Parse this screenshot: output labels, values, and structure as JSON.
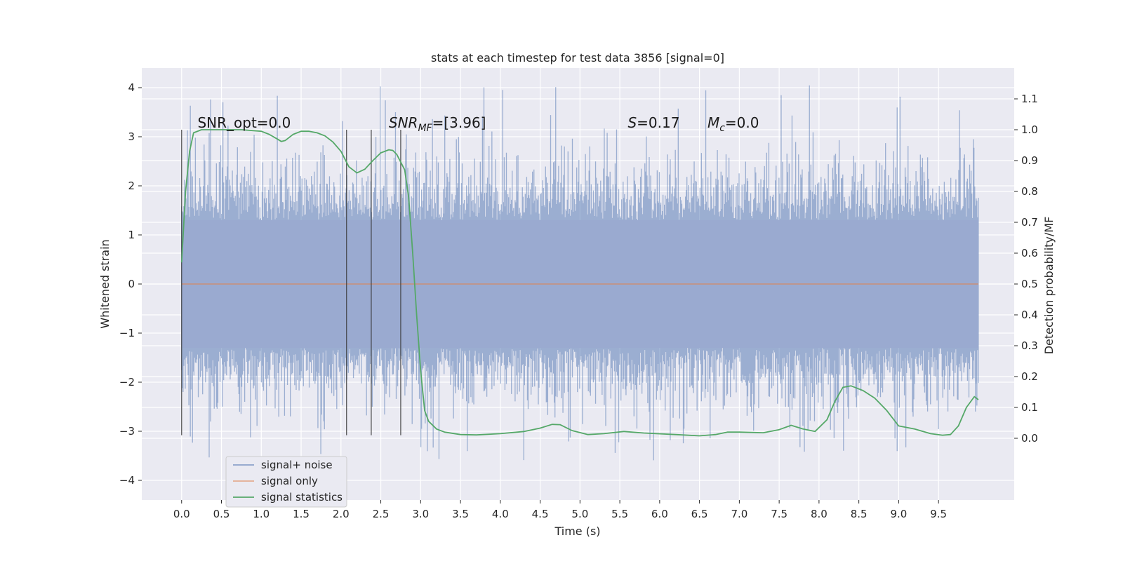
{
  "chart_data": {
    "type": "line",
    "title": "stats at each timestep for test data 3856 [signal=0]",
    "xlabel": "Time (s)",
    "ylabel_left": "Whitened strain",
    "ylabel_right": "Detection probability/MF",
    "xlim": [
      -0.5,
      10.45
    ],
    "ylim_left": [
      -4.4,
      4.4
    ],
    "ylim_right": [
      -0.2,
      1.2
    ],
    "x_ticks": [
      "0.0",
      "0.5",
      "1.0",
      "1.5",
      "2.0",
      "2.5",
      "3.0",
      "3.5",
      "4.0",
      "4.5",
      "5.0",
      "5.5",
      "6.0",
      "6.5",
      "7.0",
      "7.5",
      "8.0",
      "8.5",
      "9.0",
      "9.5"
    ],
    "y_left_ticks": [
      "−4",
      "−3",
      "−2",
      "−1",
      "0",
      "1",
      "2",
      "3",
      "4"
    ],
    "y_right_ticks": [
      "0.0",
      "0.1",
      "0.2",
      "0.3",
      "0.4",
      "0.5",
      "0.6",
      "0.7",
      "0.8",
      "0.9",
      "1.0",
      "1.1"
    ],
    "grid": true,
    "legend_position": "lower-left",
    "annotations": [
      {
        "text_main": "SNR_opt=0.0",
        "x": 0.2,
        "y": 1.0
      },
      {
        "text_main": "SNR",
        "text_sub": "MF",
        "text_rest": "=[3.96]",
        "x": 2.6,
        "y": 1.0
      },
      {
        "text_main": "S",
        "text_rest": "=0.17",
        "x": 5.6,
        "y": 1.0
      },
      {
        "text_main": "M",
        "text_sub": "c",
        "text_rest": "=0.0",
        "x": 6.6,
        "y": 1.0
      }
    ],
    "vertical_lines": [
      0.0,
      2.07,
      2.38,
      2.75
    ],
    "series": [
      {
        "name": "signal+ noise",
        "color": "#4c72b0",
        "band": {
          "x_start": 0.0,
          "x_end": 10.0,
          "typical_low": -1.3,
          "typical_high": 1.3,
          "peak_low": -3.6,
          "peak_high": 4.05
        }
      },
      {
        "name": "signal only",
        "color": "#dd8452",
        "x": [
          0.0,
          10.0
        ],
        "y": [
          0.0,
          0.0
        ]
      },
      {
        "name": "signal statistics",
        "color": "#55a868",
        "x": [
          0.0,
          0.05,
          0.1,
          0.15,
          0.25,
          0.5,
          0.75,
          1.0,
          1.1,
          1.2,
          1.25,
          1.3,
          1.4,
          1.5,
          1.6,
          1.7,
          1.8,
          1.9,
          2.0,
          2.1,
          2.2,
          2.3,
          2.4,
          2.5,
          2.6,
          2.65,
          2.7,
          2.8,
          2.85,
          2.9,
          2.95,
          3.0,
          3.05,
          3.1,
          3.2,
          3.3,
          3.5,
          3.7,
          4.0,
          4.3,
          4.5,
          4.65,
          4.75,
          4.9,
          5.1,
          5.3,
          5.55,
          5.8,
          6.2,
          6.5,
          6.7,
          6.85,
          7.0,
          7.3,
          7.5,
          7.65,
          7.8,
          7.95,
          8.1,
          8.2,
          8.3,
          8.4,
          8.55,
          8.7,
          8.85,
          9.0,
          9.2,
          9.4,
          9.55,
          9.65,
          9.75,
          9.85,
          9.95,
          10.0
        ],
        "y": [
          0.57,
          0.8,
          0.93,
          0.99,
          1.0,
          1.0,
          1.0,
          0.995,
          0.985,
          0.97,
          0.962,
          0.965,
          0.985,
          0.995,
          0.995,
          0.99,
          0.98,
          0.96,
          0.93,
          0.88,
          0.86,
          0.872,
          0.9,
          0.925,
          0.935,
          0.933,
          0.92,
          0.87,
          0.78,
          0.6,
          0.4,
          0.22,
          0.09,
          0.055,
          0.03,
          0.02,
          0.012,
          0.011,
          0.015,
          0.022,
          0.033,
          0.045,
          0.044,
          0.025,
          0.012,
          0.015,
          0.022,
          0.017,
          0.012,
          0.008,
          0.012,
          0.02,
          0.02,
          0.018,
          0.028,
          0.042,
          0.03,
          0.022,
          0.06,
          0.12,
          0.165,
          0.17,
          0.155,
          0.13,
          0.09,
          0.04,
          0.03,
          0.015,
          0.01,
          0.012,
          0.04,
          0.1,
          0.135,
          0.125
        ]
      }
    ]
  }
}
